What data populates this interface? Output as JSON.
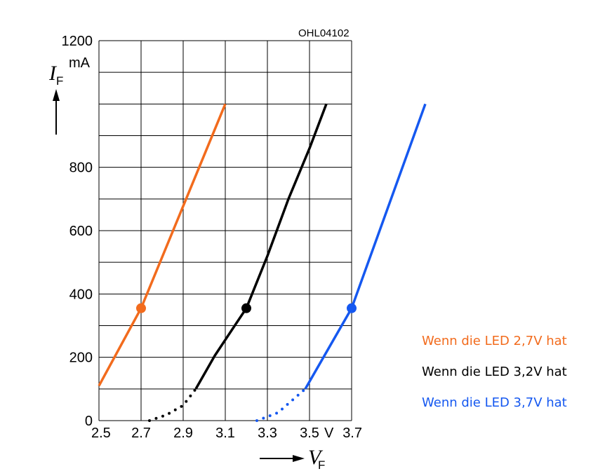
{
  "chart_data": {
    "type": "line",
    "code_label": "OHL04102",
    "y_axis": {
      "symbol": "I",
      "subscript": "F",
      "unit": "mA",
      "range": [
        0,
        1200
      ],
      "ticks": [
        0,
        200,
        400,
        600,
        800,
        1200
      ],
      "tick_labels": [
        "0",
        "200",
        "400",
        "600",
        "800",
        "1200"
      ]
    },
    "x_axis": {
      "symbol": "V",
      "subscript": "F",
      "unit": "V",
      "range": [
        2.5,
        3.7
      ],
      "ticks": [
        2.5,
        2.7,
        2.9,
        3.1,
        3.3,
        3.5,
        3.7
      ],
      "tick_labels": [
        "2.5",
        "2.7",
        "2.9",
        "3.1",
        "3.3",
        "3.5",
        "3.7"
      ]
    },
    "grid": true,
    "series": [
      {
        "name": "Wenn die LED 2,7V hat",
        "color": "#f26b1d",
        "solid": [
          [
            2.5,
            110
          ],
          [
            2.7,
            355
          ],
          [
            3.1,
            1000
          ]
        ],
        "dotted": [],
        "marker": [
          2.7,
          355
        ]
      },
      {
        "name": "Wenn die LED 3,2V hat",
        "color": "#000000",
        "solid": [
          [
            2.96,
            100
          ],
          [
            3.05,
            205
          ],
          [
            3.15,
            305
          ],
          [
            3.2,
            355
          ],
          [
            3.3,
            520
          ],
          [
            3.4,
            700
          ],
          [
            3.5,
            860
          ],
          [
            3.58,
            1000
          ]
        ],
        "dotted": [
          [
            2.74,
            0
          ],
          [
            2.82,
            18
          ],
          [
            2.9,
            48
          ],
          [
            2.96,
            100
          ]
        ],
        "marker": [
          3.2,
          355
        ]
      },
      {
        "name": "Wenn die LED 3,7V hat",
        "color": "#1558f0",
        "solid": [
          [
            3.48,
            100
          ],
          [
            3.7,
            355
          ],
          [
            4.05,
            1000
          ]
        ],
        "dotted": [
          [
            3.25,
            0
          ],
          [
            3.35,
            25
          ],
          [
            3.48,
            100
          ]
        ],
        "marker": [
          3.7,
          355
        ]
      }
    ]
  }
}
